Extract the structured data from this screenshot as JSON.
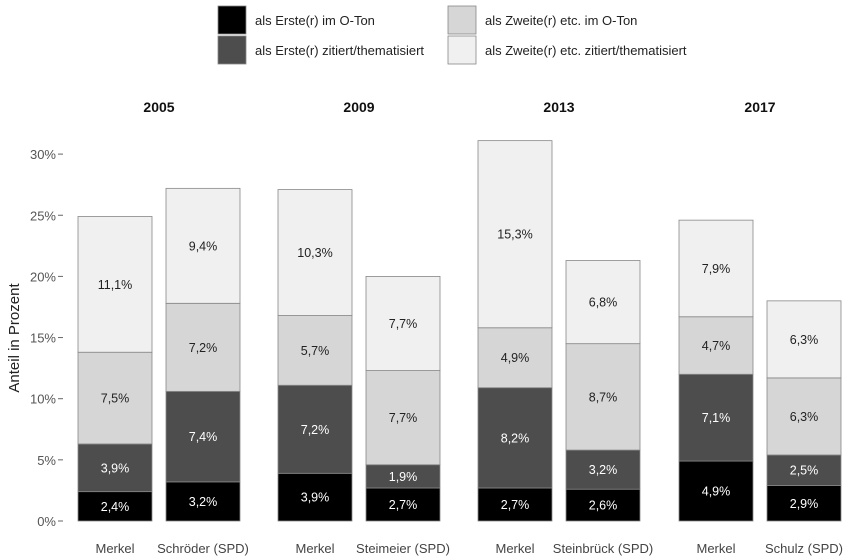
{
  "chart_data": {
    "type": "bar",
    "stacked": true,
    "ylabel": "Anteil in Prozent",
    "ylim": [
      0,
      30
    ],
    "yticks": [
      "0%",
      "5%",
      "10%",
      "15%",
      "20%",
      "25%",
      "30%"
    ],
    "legend": {
      "placement": "top",
      "entries": [
        {
          "name": "als Erste(r) im O-Ton",
          "color": "#000000"
        },
        {
          "name": "als Erste(r) zitiert/thematisiert",
          "color": "#4d4d4d"
        },
        {
          "name": "als Zweite(r) etc. im O-Ton",
          "color": "#d6d6d6"
        },
        {
          "name": "als Zweite(r) etc. zitiert/thematisiert",
          "color": "#f0f0f0"
        }
      ]
    },
    "facets": [
      {
        "title": "2005",
        "bars": [
          {
            "label": "Merkel",
            "values": [
              2.4,
              3.9,
              7.5,
              11.1
            ],
            "labels": [
              "2,4%",
              "3,9%",
              "7,5%",
              "11,1%"
            ]
          },
          {
            "label": "Schröder (SPD)",
            "values": [
              3.2,
              7.4,
              7.2,
              9.4
            ],
            "labels": [
              "3,2%",
              "7,4%",
              "7,2%",
              "9,4%"
            ]
          }
        ]
      },
      {
        "title": "2009",
        "bars": [
          {
            "label": "Merkel",
            "values": [
              3.9,
              7.2,
              5.7,
              10.3
            ],
            "labels": [
              "3,9%",
              "7,2%",
              "5,7%",
              "10,3%"
            ]
          },
          {
            "label": "Steimeier (SPD)",
            "values": [
              2.7,
              1.9,
              7.7,
              7.7
            ],
            "labels": [
              "2,7%",
              "1,9%",
              "7,7%",
              "7,7%"
            ]
          }
        ]
      },
      {
        "title": "2013",
        "bars": [
          {
            "label": "Merkel",
            "values": [
              2.7,
              8.2,
              4.9,
              15.3
            ],
            "labels": [
              "2,7%",
              "8,2%",
              "4,9%",
              "15,3%"
            ]
          },
          {
            "label": "Steinbrück (SPD)",
            "values": [
              2.6,
              3.2,
              8.7,
              6.8
            ],
            "labels": [
              "2,6%",
              "3,2%",
              "8,7%",
              "6,8%"
            ]
          }
        ]
      },
      {
        "title": "2017",
        "bars": [
          {
            "label": "Merkel",
            "values": [
              4.9,
              7.1,
              4.7,
              7.9
            ],
            "labels": [
              "4,9%",
              "7,1%",
              "4,7%",
              "7,9%"
            ]
          },
          {
            "label": "Schulz (SPD)",
            "values": [
              2.9,
              2.5,
              6.3,
              6.3
            ],
            "labels": [
              "2,9%",
              "2,5%",
              "6,3%",
              "6,3%"
            ]
          }
        ]
      }
    ]
  }
}
